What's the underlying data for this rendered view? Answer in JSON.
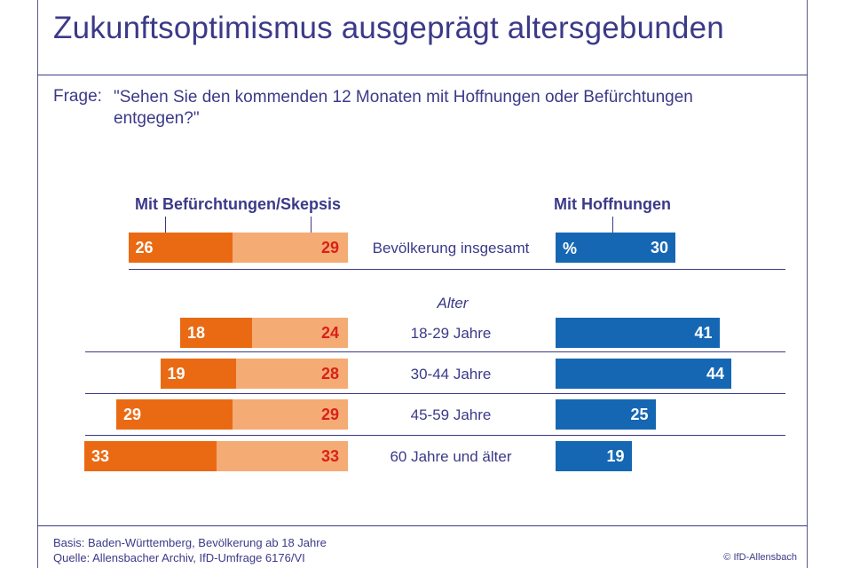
{
  "title": "Zukunftsoptimismus ausgeprägt altersgebunden",
  "question": {
    "label": "Frage:",
    "text": "\"Sehen Sie den kommenden 12 Monaten mit Hoffnungen oder Befürchtungen entgegen?\""
  },
  "headers": {
    "left": "Mit Befürchtungen/Skepsis",
    "right": "Mit Hoffnungen"
  },
  "percent_sign": "%",
  "group_label": "Alter",
  "footer": {
    "basis": "Basis: Baden-Württemberg, Bevölkerung ab 18 Jahre",
    "source": "Quelle: Allensbacher Archiv, IfD-Umfrage 6176/VI",
    "copyright": "© IfD-Allensbach"
  },
  "colors": {
    "befuerchtungen": "#ea6a14",
    "skepsis": "#f5ab74",
    "hoffnungen": "#1567b3",
    "text": "#3b3a88"
  },
  "chart_data": {
    "type": "bar",
    "categories": [
      "Bevölkerung insgesamt",
      "18-29 Jahre",
      "30-44 Jahre",
      "45-59 Jahre",
      "60 Jahre und älter"
    ],
    "series": [
      {
        "values": [
          26,
          18,
          19,
          29,
          33
        ]
      },
      {
        "values": [
          29,
          24,
          28,
          29,
          33
        ]
      },
      {
        "name": "Mit Hoffnungen",
        "values": [
          30,
          41,
          44,
          25,
          19
        ]
      }
    ],
    "unit": "%"
  }
}
